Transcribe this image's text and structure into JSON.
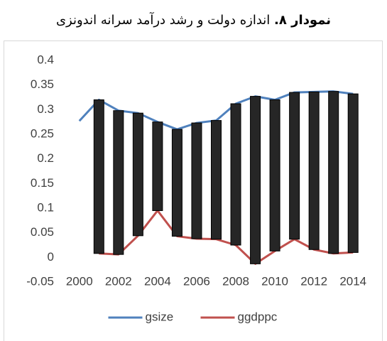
{
  "chart_data": {
    "type": "line",
    "title_label": "نمودار ۸.",
    "title": "اندازه دولت و رشد درآمد سرانه اندونزی",
    "categories": [
      "2000",
      null,
      "2002",
      null,
      "2004",
      null,
      "2006",
      null,
      "2008",
      null,
      "2010",
      null,
      "2012",
      null,
      "2014"
    ],
    "series": [
      {
        "name": "gsize",
        "color": "#4f81bd",
        "values": [
          0.277,
          0.32,
          0.298,
          0.293,
          0.275,
          0.26,
          0.273,
          0.278,
          0.312,
          0.327,
          0.32,
          0.335,
          0.336,
          0.337,
          0.332
        ]
      },
      {
        "name": "ggdppc",
        "color": "#c0504d",
        "values": [
          null,
          0.008,
          0.006,
          0.044,
          0.095,
          0.043,
          0.038,
          0.037,
          0.025,
          -0.013,
          0.013,
          0.037,
          0.016,
          0.008,
          0.01
        ]
      }
    ],
    "updown_bars": true,
    "bar_color": "#262626",
    "ylim": [
      -0.05,
      0.4
    ],
    "yticks": [
      -0.05,
      0,
      0.05,
      0.1,
      0.15,
      0.2,
      0.25,
      0.3,
      0.35,
      0.4
    ],
    "grid": false,
    "legend": "bottom"
  }
}
